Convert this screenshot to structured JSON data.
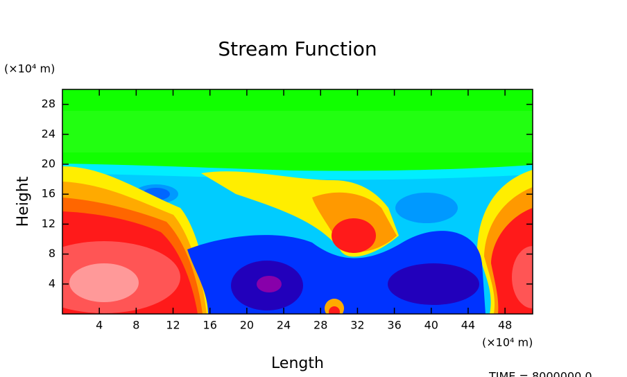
{
  "chart_data": {
    "type": "contour",
    "title": "Stream Function",
    "xlabel": "Length",
    "ylabel": "Height",
    "x_unit": "(×10⁴ m)",
    "y_unit": "(×10⁴ m)",
    "annotation": "TIME = 8000000.0",
    "xlim": [
      0,
      51
    ],
    "ylim": [
      0,
      30
    ],
    "xticks": [
      4,
      8,
      12,
      16,
      20,
      24,
      28,
      32,
      36,
      40,
      44,
      48
    ],
    "yticks": [
      4,
      8,
      12,
      16,
      20,
      24,
      28
    ]
  }
}
